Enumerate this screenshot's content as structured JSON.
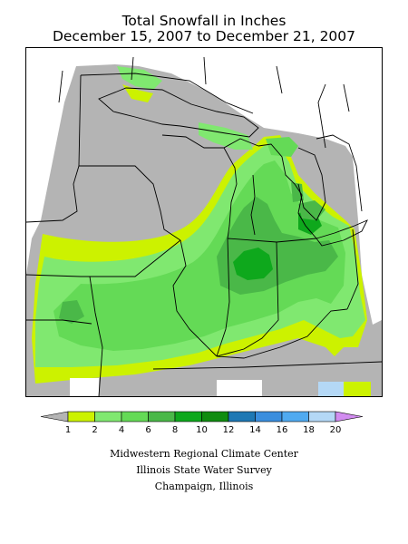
{
  "title": {
    "line1": "Total Snowfall in Inches",
    "line2": "December 15, 2007 to December 21, 2007"
  },
  "legend": {
    "ticks": [
      "1",
      "2",
      "4",
      "6",
      "8",
      "10",
      "12",
      "14",
      "16",
      "18",
      "20"
    ],
    "colors": {
      "below_min": "#b4b4b4",
      "bins": [
        "#ccf200",
        "#80e870",
        "#64da56",
        "#4ab848",
        "#0ea81c",
        "#108c10",
        "#1e78b4",
        "#3a8ede",
        "#50aaf0",
        "#b4d8f6"
      ],
      "above_max": "#d28cf0"
    }
  },
  "map": {
    "colors": {
      "gray": "#b4b4b4",
      "yellow": "#ccf200",
      "light_green": "#80e870",
      "green": "#64da56",
      "mid_green": "#4ab848",
      "bright_green": "#0ea81c",
      "dark_green": "#108c10",
      "blue": "#3a8ede",
      "light_blue": "#b4d8f6",
      "white": "#ffffff"
    }
  },
  "credits": {
    "line1": "Midwestern Regional Climate Center",
    "line2": "Illinois State Water Survey",
    "line3": "Champaign, Illinois"
  }
}
